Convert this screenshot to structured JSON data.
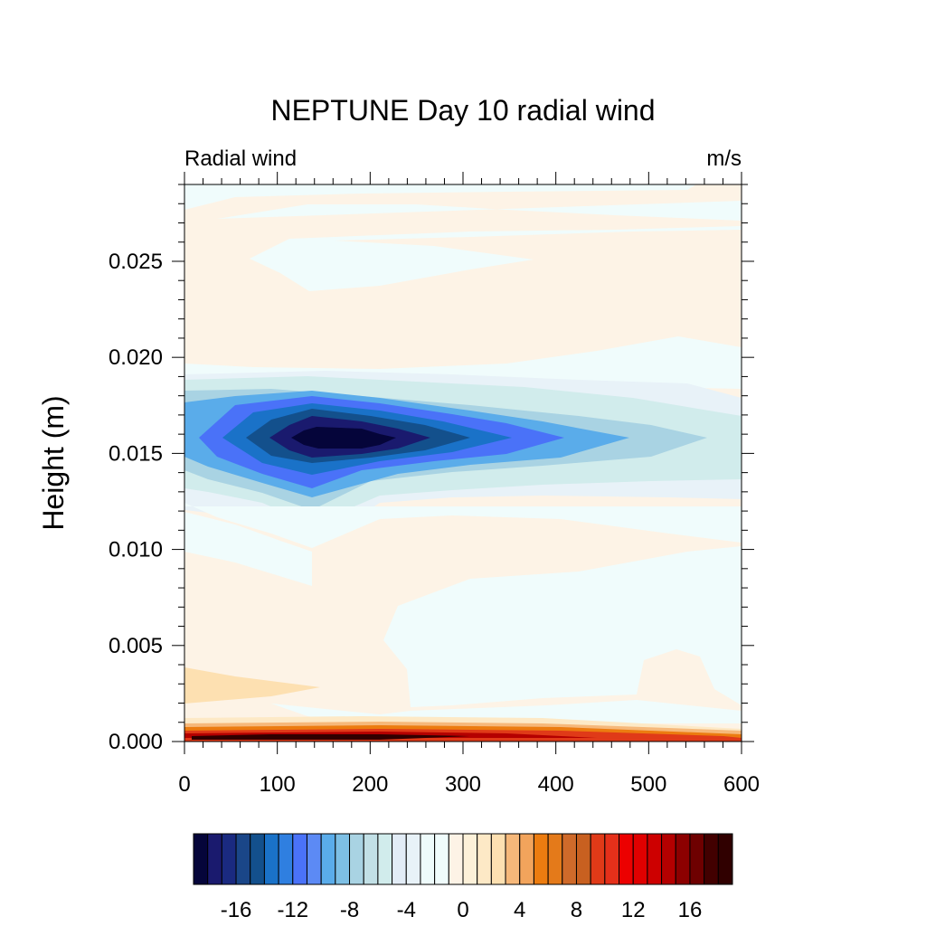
{
  "chart_data": {
    "type": "heatmap",
    "title": "NEPTUNE Day 10 radial wind",
    "left_string": "Radial wind",
    "right_string": "m/s",
    "xlabel": "",
    "ylabel": "Height (m)",
    "xlim": [
      0,
      600
    ],
    "ylim": [
      0.0,
      0.029
    ],
    "x_ticks": [
      0,
      100,
      200,
      300,
      400,
      500,
      600
    ],
    "x_tick_labels": [
      "0",
      "100",
      "200",
      "300",
      "400",
      "500",
      "600"
    ],
    "y_ticks": [
      0.0,
      0.005,
      0.01,
      0.015,
      0.02,
      0.025
    ],
    "y_tick_labels": [
      "0.000",
      "0.005",
      "0.010",
      "0.015",
      "0.020",
      "0.025"
    ],
    "colorbar": {
      "min": -19,
      "max": 19,
      "step": 1,
      "labels": [
        "-16",
        "-12",
        "-8",
        "-4",
        "0",
        "4",
        "8",
        "12",
        "16"
      ],
      "colors": [
        "#05053a",
        "#1a1a6e",
        "#1a2a80",
        "#1a4688",
        "#13508c",
        "#1a72c8",
        "#2f7fe0",
        "#4a72f8",
        "#5c8af5",
        "#5aacea",
        "#7dbfe4",
        "#a9d3e3",
        "#c2e0e6",
        "#d1ecec",
        "#e2ecf6",
        "#e8f2f8",
        "#eefbfb",
        "#f0fcfc",
        "#fdf3e6",
        "#fdf1d9",
        "#fde9c6",
        "#fde0b1",
        "#f6b87a",
        "#f2a45c",
        "#ec7c10",
        "#e47a1a",
        "#cf6a2a",
        "#c86020",
        "#e03a18",
        "#e5301a",
        "#ec0000",
        "#e00000",
        "#cd0000",
        "#b40000",
        "#8c0000",
        "#6e0000",
        "#420000",
        "#300000"
      ]
    },
    "bands": [
      {
        "name": "upper_positive_background",
        "value": 0.5,
        "color": "#fdf3e6"
      },
      {
        "name": "upper_weak_negative_band",
        "value": -0.5,
        "color": "#f0fcfc"
      },
      {
        "name": "jet_core",
        "height_center": 0.0158,
        "x_center": 170,
        "value": -19
      },
      {
        "name": "surface_jet",
        "height_center": 0.0002,
        "x_center": 190,
        "value": 19
      }
    ]
  }
}
